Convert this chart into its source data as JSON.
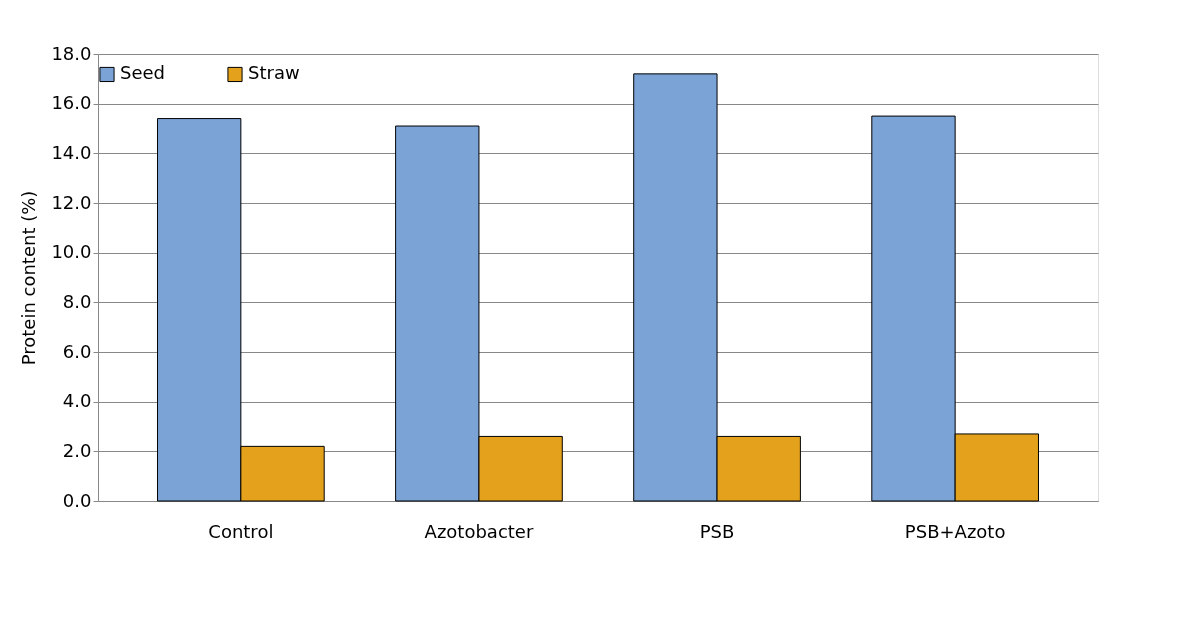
{
  "chart_data": {
    "type": "bar",
    "ylabel": "Protein content (%)",
    "categories": [
      "Control",
      "Azotobacter",
      "PSB",
      "PSB+Azoto"
    ],
    "series": [
      {
        "name": "Seed",
        "color": "#7ba3d6",
        "values": [
          15.4,
          15.1,
          17.2,
          15.5
        ]
      },
      {
        "name": "Straw",
        "color": "#e4a21c",
        "values": [
          2.2,
          2.6,
          2.6,
          2.7
        ]
      }
    ],
    "ylim": [
      0,
      18
    ],
    "yticks": [
      {
        "value": 0,
        "label": "0.0"
      },
      {
        "value": 2,
        "label": "2.0"
      },
      {
        "value": 4,
        "label": "4.0"
      },
      {
        "value": 6,
        "label": "6.0"
      },
      {
        "value": 8,
        "label": "8.0"
      },
      {
        "value": 10,
        "label": "10.0"
      },
      {
        "value": 12,
        "label": "12.0"
      },
      {
        "value": 14,
        "label": "14.0"
      },
      {
        "value": 16,
        "label": "16.0"
      },
      {
        "value": 18,
        "label": "18.0"
      }
    ],
    "grid": "y",
    "legend": "top"
  }
}
